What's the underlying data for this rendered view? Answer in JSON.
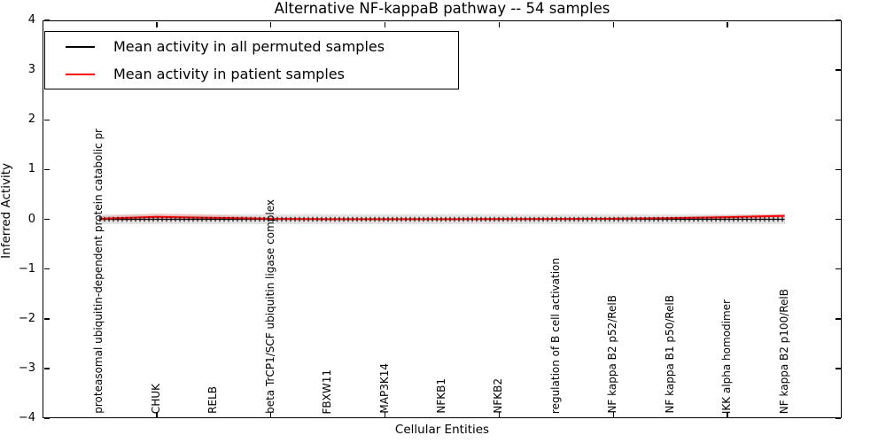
{
  "figure": {
    "title": "Alternative NF-kappaB pathway -- 54 samples",
    "xlabel": "Cellular Entities",
    "ylabel": "Inferred Activity"
  },
  "legend": {
    "entries": [
      {
        "label": "Mean activity in all permuted samples",
        "color": "#000000"
      },
      {
        "label": "Mean activity in patient samples",
        "color": "#ff0000"
      }
    ]
  },
  "axes": {
    "ylim": [
      -4,
      4
    ],
    "xlim": [
      0,
      14
    ],
    "y_tick_labels": [
      "4",
      "3",
      "2",
      "1",
      "0",
      "−1",
      "−2",
      "−3",
      "−4"
    ],
    "y_tick_values": [
      4,
      3,
      2,
      1,
      0,
      -1,
      -2,
      -3,
      -4
    ],
    "x_tick_values": [
      2,
      4,
      6,
      8,
      10,
      12
    ],
    "grid": false
  },
  "chart_data": {
    "type": "line",
    "title": "Alternative NF-kappaB pathway -- 54 samples",
    "xlabel": "Cellular Entities",
    "ylabel": "Inferred Activity",
    "ylim": [
      -4,
      4
    ],
    "legend_position": "upper left",
    "grid": false,
    "categories": [
      "proteasomal ubiquitin-dependent protein catabolic pr",
      "CHUK",
      "RELB",
      "beta TrCP1/SCF ubiquitin ligase complex",
      "FBXW11",
      "MAP3K14",
      "NFKB1",
      "NFKB2",
      "regulation of B cell activation",
      "NF kappa B2 p52/RelB",
      "NF kappa B1 p50/RelB",
      "IKK alpha homodimer",
      "NF kappa B2 p100/RelB"
    ],
    "x_positions": [
      1,
      2,
      3,
      4,
      5,
      6,
      7,
      8,
      9,
      10,
      11,
      12,
      13
    ],
    "series": [
      {
        "name": "Mean activity in all permuted samples",
        "color": "#000000",
        "values": [
          0,
          0,
          0,
          0,
          0,
          0,
          0,
          0,
          0,
          0,
          0,
          0,
          0
        ],
        "band_upper": [
          0.085,
          0.085,
          0.085,
          0.085,
          0.085,
          0.085,
          0.085,
          0.085,
          0.085,
          0.085,
          0.085,
          0.085,
          0.085
        ],
        "band_lower": [
          -0.085,
          -0.085,
          -0.085,
          -0.085,
          -0.085,
          -0.085,
          -0.085,
          -0.085,
          -0.085,
          -0.085,
          -0.085,
          -0.085,
          -0.085
        ],
        "band_color": "#e5e5e5"
      },
      {
        "name": "Mean activity in patient samples",
        "color": "#ff0000",
        "values": [
          0.01,
          0.05,
          0.03,
          0.01,
          0.003,
          0.003,
          0.003,
          0.004,
          0.006,
          0.012,
          0.022,
          0.042,
          0.07
        ],
        "band_upper": [
          0.06,
          0.12,
          0.09,
          0.04,
          0.025,
          0.025,
          0.025,
          0.025,
          0.03,
          0.035,
          0.05,
          0.08,
          0.11
        ],
        "band_lower": [
          -0.035,
          -0.02,
          -0.02,
          -0.02,
          -0.02,
          -0.02,
          -0.02,
          -0.02,
          -0.015,
          -0.01,
          -0.005,
          0.005,
          0.03
        ],
        "band_color": "rgba(255,0,0,0.17)"
      }
    ]
  }
}
